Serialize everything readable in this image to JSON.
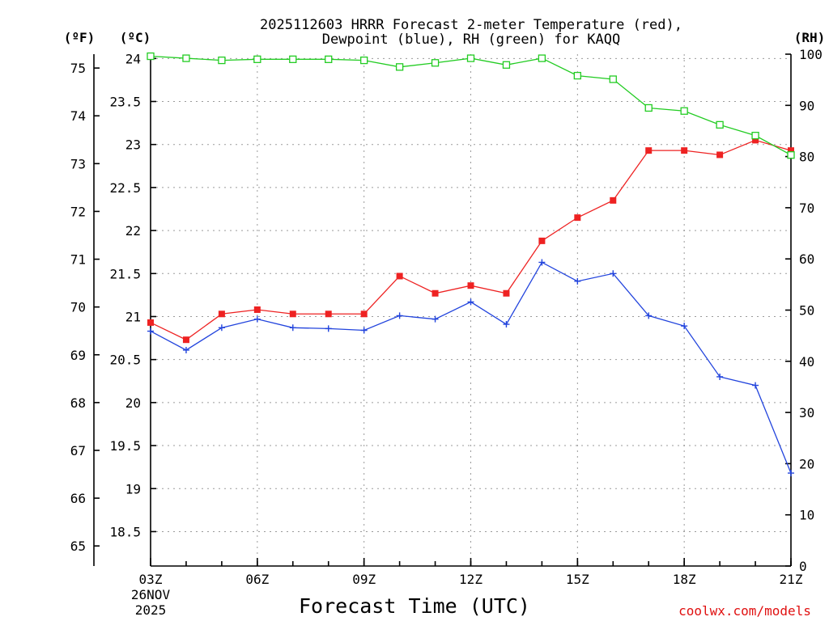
{
  "title": {
    "line1": "2025112603 HRRR Forecast 2-meter Temperature (red),",
    "line2": "Dewpoint (blue), RH (green) for KAQQ"
  },
  "units": {
    "fahrenheit": "(ºF)",
    "celsius": "(ºC)",
    "rh": "(RH)"
  },
  "credit": "coolwx.com/models",
  "chart_data": {
    "type": "line",
    "title": "2025112603 HRRR Forecast 2-meter Temperature (red), Dewpoint (blue), RH (green) for KAQQ",
    "xlabel": "Forecast Time (UTC)",
    "x": [
      "03Z",
      "04Z",
      "05Z",
      "06Z",
      "07Z",
      "08Z",
      "09Z",
      "10Z",
      "11Z",
      "12Z",
      "13Z",
      "14Z",
      "15Z",
      "16Z",
      "17Z",
      "18Z",
      "19Z",
      "20Z",
      "21Z"
    ],
    "x_ticks": [
      {
        "index": 0,
        "label": "03Z",
        "sub1": "26NOV",
        "sub2": "2025"
      },
      {
        "index": 3,
        "label": "06Z"
      },
      {
        "index": 6,
        "label": "09Z"
      },
      {
        "index": 9,
        "label": "12Z"
      },
      {
        "index": 12,
        "label": "15Z"
      },
      {
        "index": 15,
        "label": "18Z"
      },
      {
        "index": 18,
        "label": "21Z"
      }
    ],
    "celsius_axis": {
      "ylim": [
        18.1,
        24.05
      ],
      "ticks": [
        "18.5",
        "19",
        "19.5",
        "20",
        "20.5",
        "21",
        "21.5",
        "22",
        "22.5",
        "23",
        "23.5",
        "24"
      ]
    },
    "fahrenheit_axis": {
      "ylim": [
        64.58,
        75.29
      ],
      "ticks": [
        "65",
        "66",
        "67",
        "68",
        "69",
        "70",
        "71",
        "72",
        "73",
        "74",
        "75"
      ]
    },
    "rh_axis": {
      "ylim": [
        0,
        100
      ],
      "ticks": [
        "0",
        "10",
        "20",
        "30",
        "40",
        "50",
        "60",
        "70",
        "80",
        "90",
        "100"
      ]
    },
    "series": [
      {
        "name": "Temperature",
        "axis": "celsius",
        "color": "#ee2222",
        "marker": "filled-square",
        "values": [
          20.93,
          20.73,
          21.03,
          21.08,
          21.03,
          21.03,
          21.03,
          21.47,
          21.27,
          21.36,
          21.27,
          21.88,
          22.15,
          22.35,
          22.93,
          22.93,
          22.88,
          23.05,
          22.93
        ]
      },
      {
        "name": "Dewpoint",
        "axis": "celsius",
        "color": "#2244dd",
        "marker": "plus",
        "values": [
          20.83,
          20.61,
          20.87,
          20.97,
          20.87,
          20.86,
          20.84,
          21.01,
          20.97,
          21.17,
          20.91,
          21.63,
          21.41,
          21.5,
          21.01,
          20.89,
          20.3,
          20.2,
          19.18
        ]
      },
      {
        "name": "RH",
        "axis": "rh",
        "color": "#22cc22",
        "marker": "open-square",
        "values": [
          99.6,
          99.2,
          98.8,
          99.0,
          99.0,
          99.0,
          98.8,
          97.5,
          98.3,
          99.2,
          97.9,
          99.2,
          95.8,
          95.1,
          89.5,
          88.9,
          86.2,
          84.1,
          80.3
        ]
      }
    ]
  }
}
